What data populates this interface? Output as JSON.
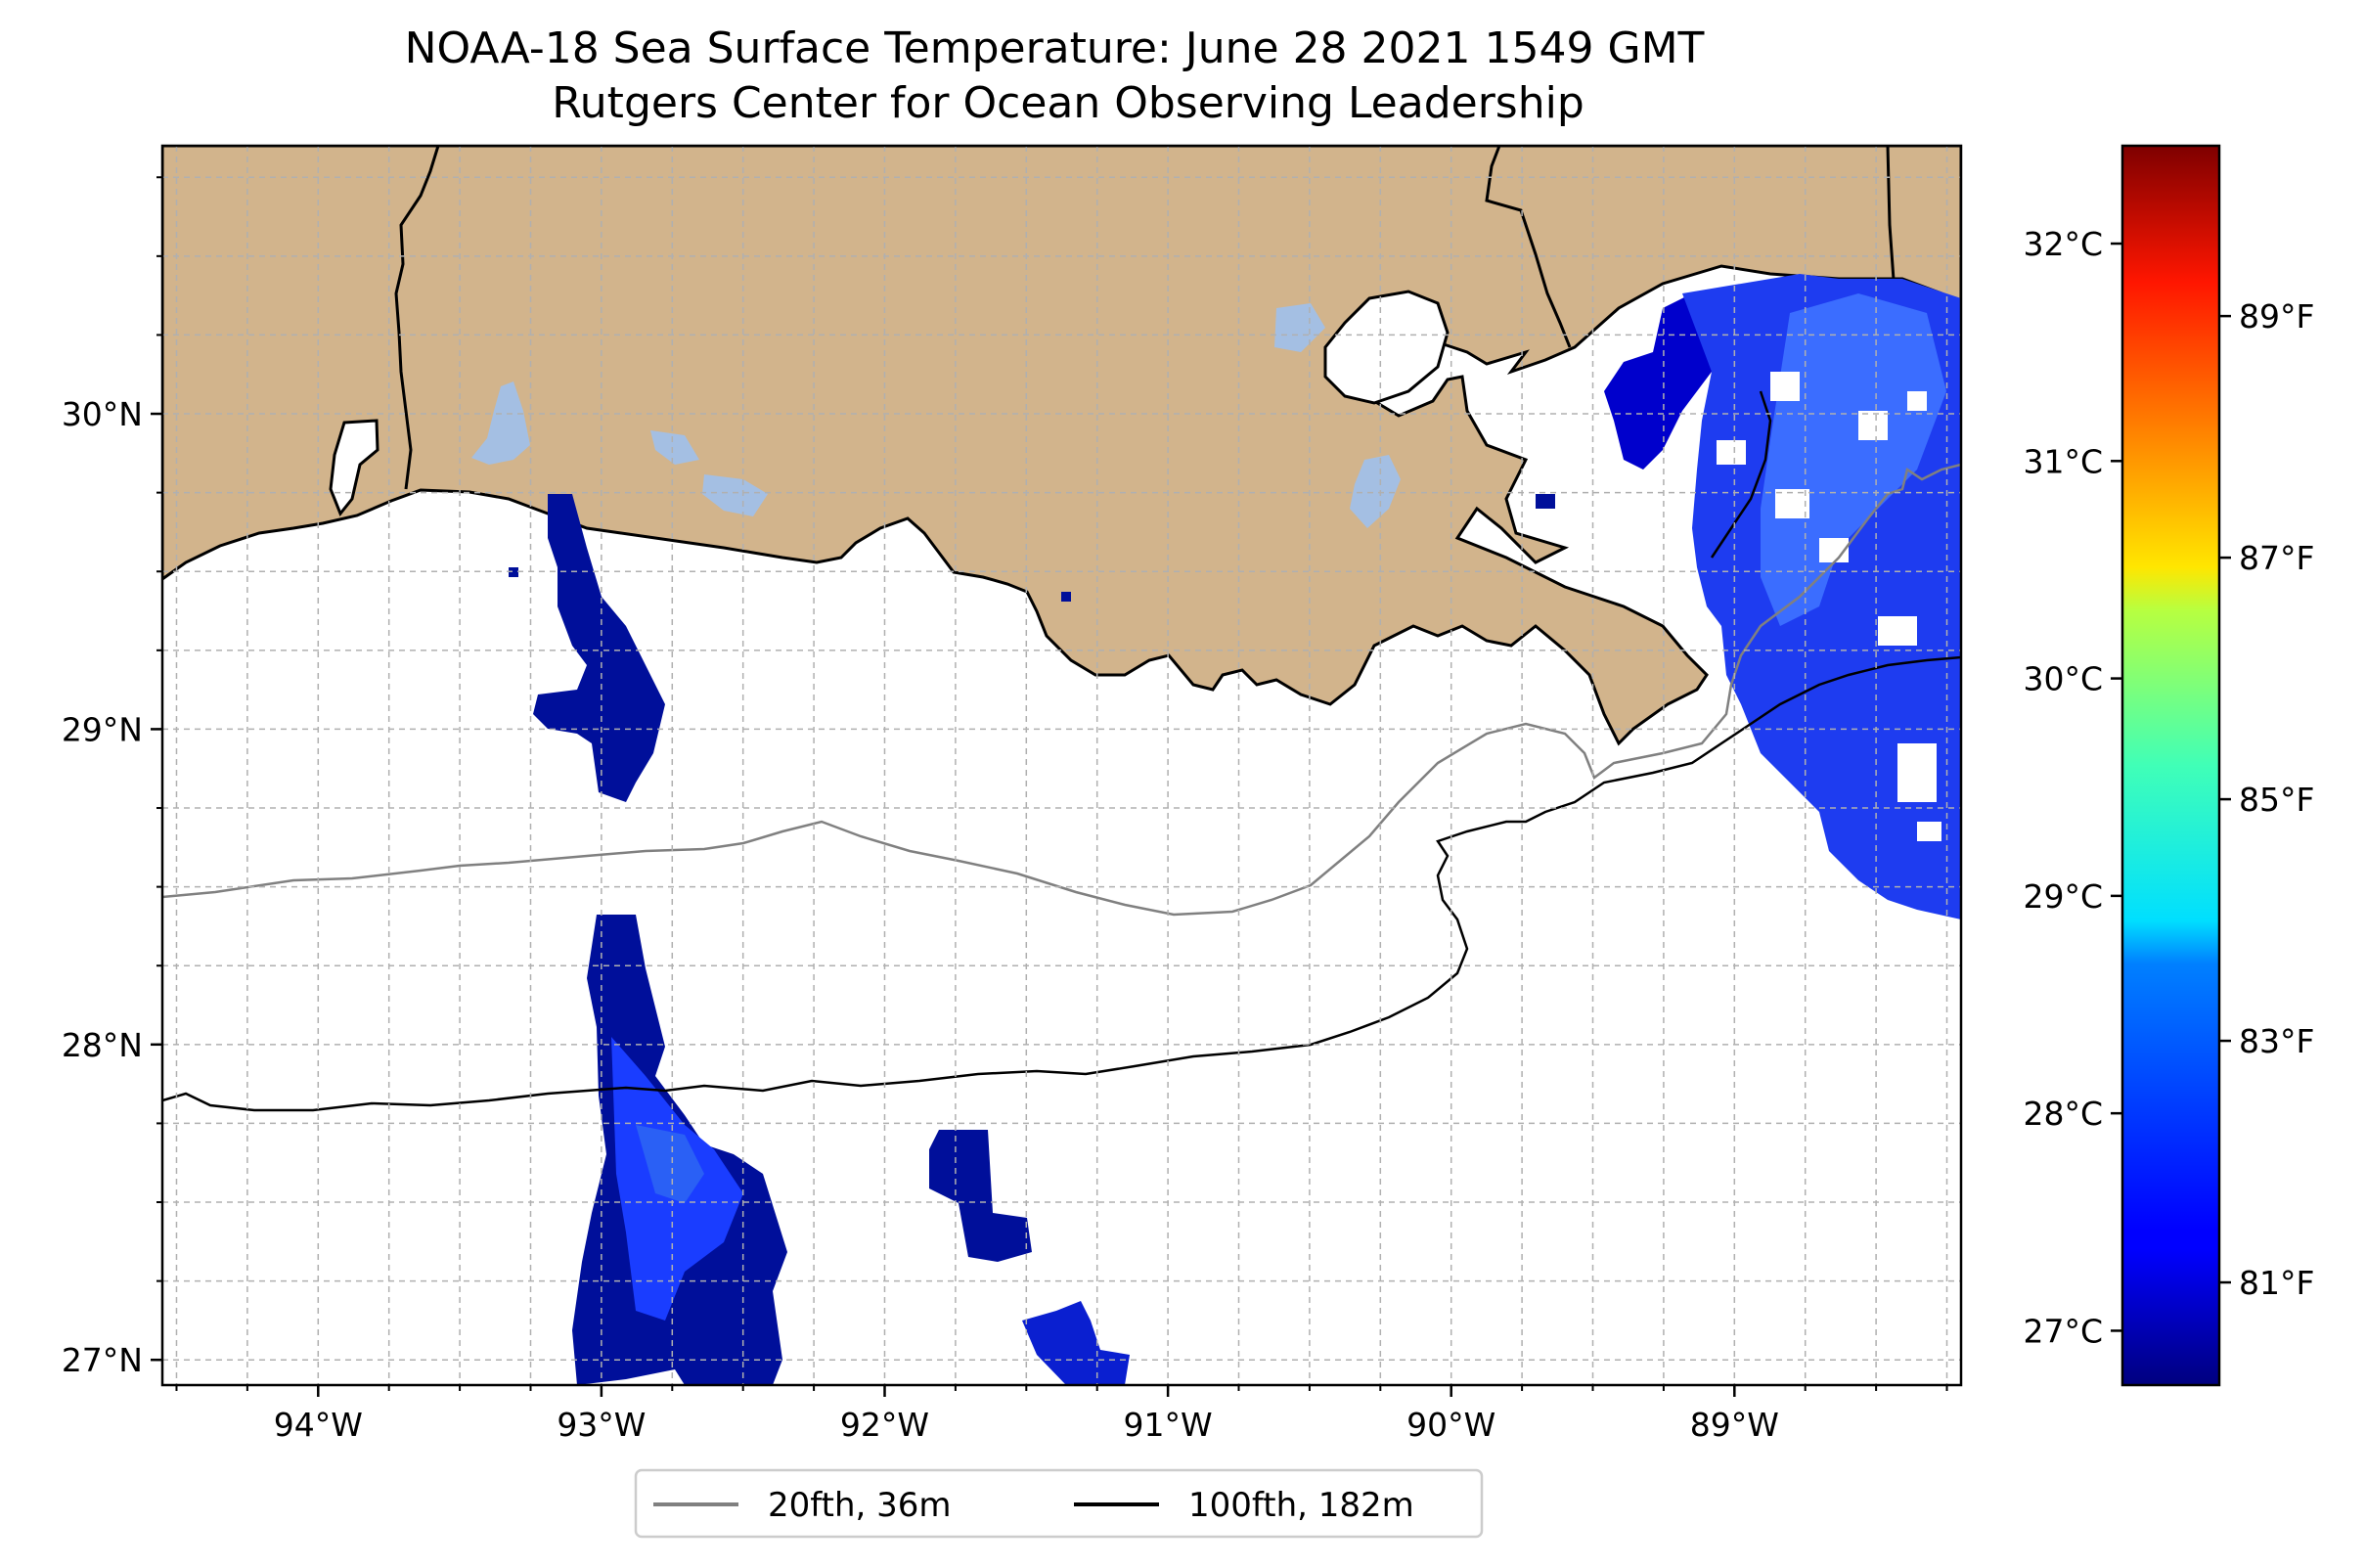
{
  "title": {
    "line1": "NOAA-18 Sea Surface Temperature: June 28 2021 1549 GMT",
    "line2": "Rutgers Center for Ocean Observing Leadership"
  },
  "map": {
    "lon_range": [
      -94.55,
      -88.2
    ],
    "lat_range": [
      26.92,
      30.85
    ],
    "lon_ticks": [
      {
        "value": -94,
        "label": "94°W"
      },
      {
        "value": -93,
        "label": "93°W"
      },
      {
        "value": -92,
        "label": "92°W"
      },
      {
        "value": -91,
        "label": "91°W"
      },
      {
        "value": -90,
        "label": "90°W"
      },
      {
        "value": -89,
        "label": "89°W"
      }
    ],
    "lat_ticks": [
      {
        "value": 27,
        "label": "27°N"
      },
      {
        "value": 28,
        "label": "28°N"
      },
      {
        "value": 29,
        "label": "29°N"
      },
      {
        "value": 30,
        "label": "30°N"
      }
    ],
    "gridlines": true,
    "colors": {
      "land": "#d2b48c",
      "lakes": "#a4bfe3",
      "ocean": "#ffffff",
      "coastline": "#000000",
      "isobath_20fth": "#808080",
      "isobath_100fth": "#000000"
    }
  },
  "colorbar": {
    "colormap": "jet",
    "range_c": [
      26.75,
      32.45
    ],
    "celsius_ticks": [
      {
        "value": 27,
        "label": "27°C"
      },
      {
        "value": 28,
        "label": "28°C"
      },
      {
        "value": 29,
        "label": "29°C"
      },
      {
        "value": 30,
        "label": "30°C"
      },
      {
        "value": 31,
        "label": "31°C"
      },
      {
        "value": 32,
        "label": "32°C"
      }
    ],
    "fahrenheit_ticks": [
      {
        "value": 81,
        "label": "81°F"
      },
      {
        "value": 83,
        "label": "83°F"
      },
      {
        "value": 85,
        "label": "85°F"
      },
      {
        "value": 87,
        "label": "87°F"
      },
      {
        "value": 89,
        "label": "89°F"
      }
    ]
  },
  "legend": {
    "placement": "bottom-center",
    "entries": [
      {
        "label": "20fth, 36m",
        "color": "#808080"
      },
      {
        "label": "100fth, 182m",
        "color": "#000000"
      }
    ]
  }
}
